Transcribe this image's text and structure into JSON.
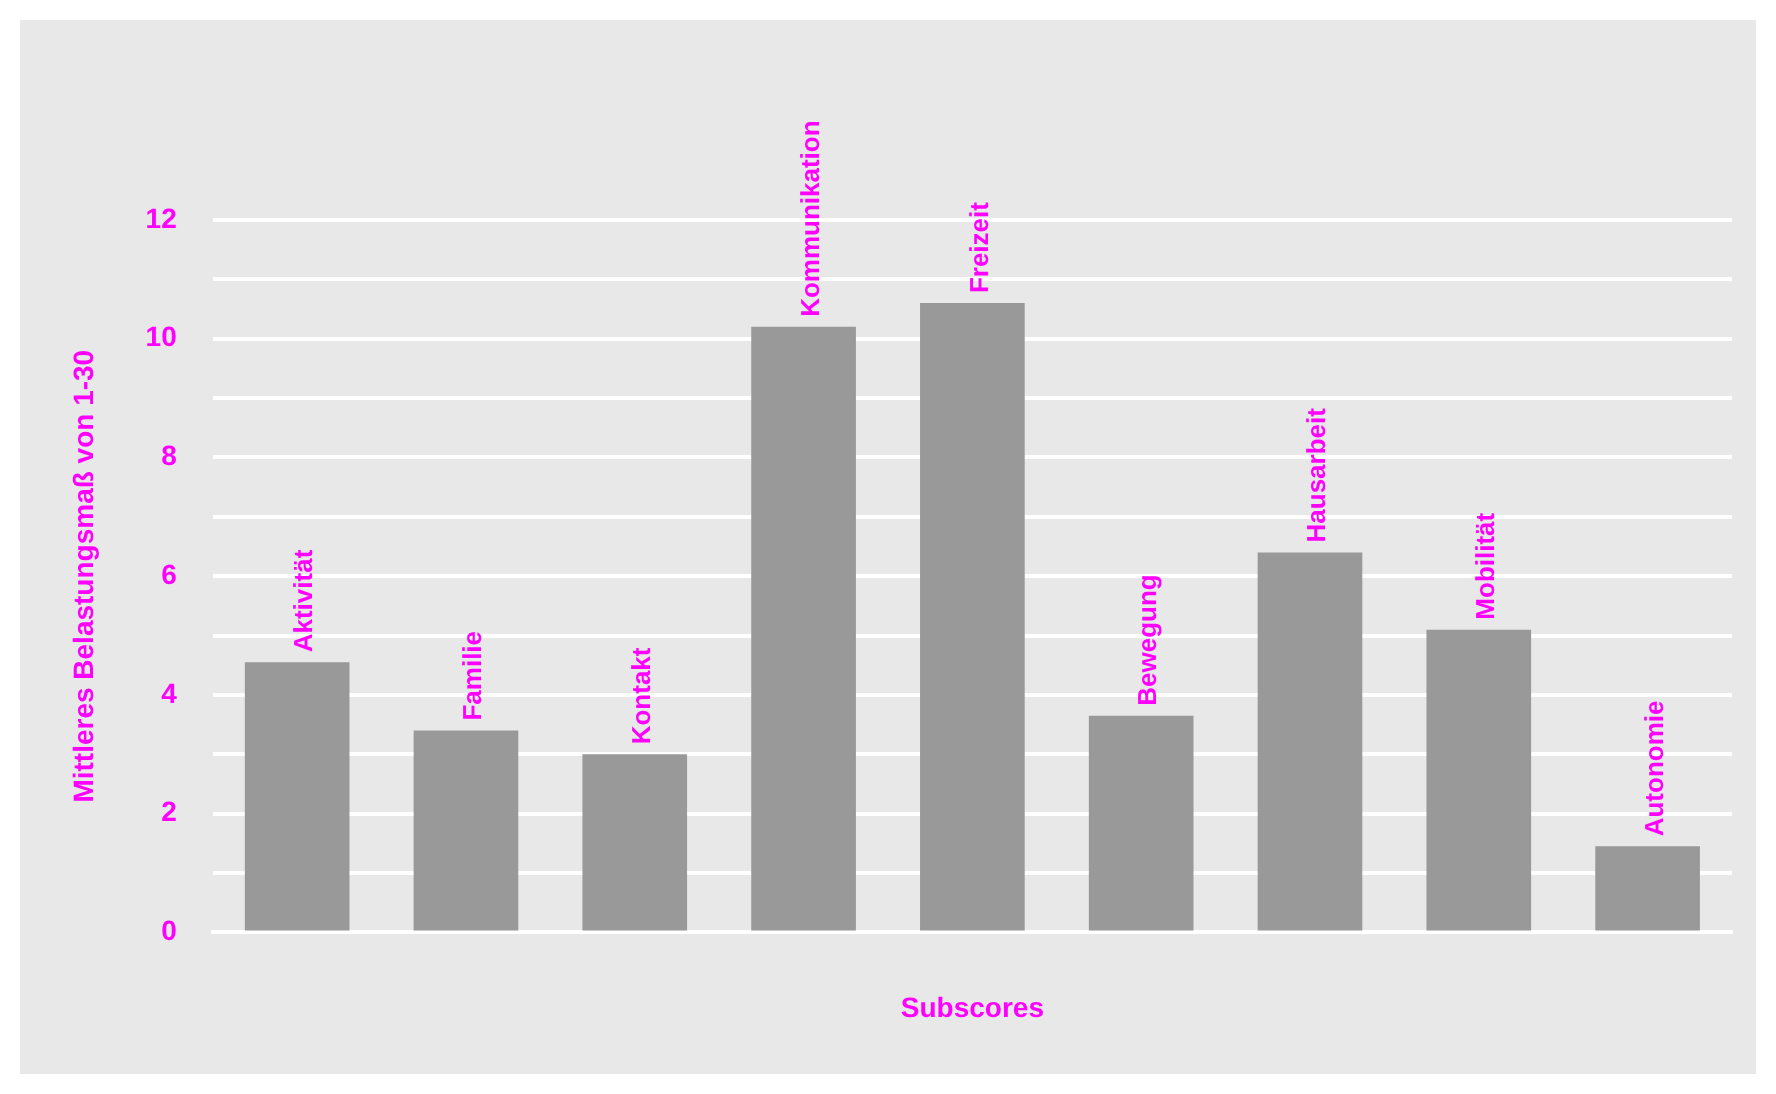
{
  "chart_data": {
    "type": "bar",
    "xlabel": "Subscores",
    "ylabel": "Mittleres Belastungsmaß von 1-30",
    "categories": [
      "Aktivität",
      "Familie",
      "Kontakt",
      "Kommunikation",
      "Freizeit",
      "Bewegung",
      "Hausarbeit",
      "Mobilität",
      "Autonomie"
    ],
    "values": [
      4.55,
      3.4,
      3.0,
      10.2,
      10.6,
      3.65,
      6.4,
      5.1,
      1.45
    ],
    "color": "#999999",
    "ylim": [
      0,
      12
    ],
    "yticks": [
      0,
      {
        "value": 1,
        "label": null
      },
      2,
      {
        "value": 3,
        "label": null
      },
      4,
      {
        "value": 5,
        "label": null
      },
      6,
      {
        "value": 7,
        "label": null
      },
      8,
      {
        "value": 9,
        "label": null
      },
      10,
      {
        "value": 11,
        "label": null
      },
      12
    ],
    "grid": "y",
    "legend": false
  }
}
